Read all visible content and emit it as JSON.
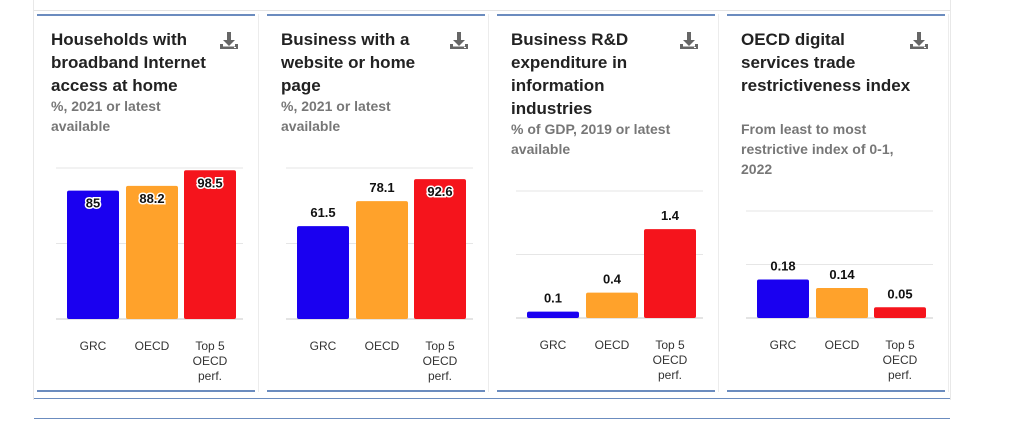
{
  "chart_data": [
    {
      "type": "bar",
      "title": "Households with broadband Internet access at home",
      "subtitle": "%, 2021 or latest available",
      "categories": [
        "GRC",
        "OECD",
        "Top 5 OECD perf."
      ],
      "values": [
        85,
        88.2,
        98.5
      ],
      "value_labels": [
        "85",
        "88.2",
        "98.5"
      ],
      "ylim": [
        0,
        100
      ],
      "grid": true,
      "label_style": "inside"
    },
    {
      "type": "bar",
      "title": "Business with a website or home page",
      "subtitle": "%, 2021 or latest available",
      "categories": [
        "GRC",
        "OECD",
        "Top 5 OECD perf."
      ],
      "values": [
        61.5,
        78.1,
        92.6
      ],
      "value_labels": [
        "61.5",
        "78.1",
        "92.6"
      ],
      "ylim": [
        0,
        100
      ],
      "grid": true,
      "label_style": "mixed"
    },
    {
      "type": "bar",
      "title": "Business R&D expenditure in information industries",
      "subtitle": "% of GDP, 2019 or latest available",
      "categories": [
        "GRC",
        "OECD",
        "Top 5 OECD perf."
      ],
      "values": [
        0.1,
        0.4,
        1.4
      ],
      "value_labels": [
        "0.1",
        "0.4",
        "1.4"
      ],
      "ylim": [
        0,
        2
      ],
      "grid": true,
      "label_style": "above"
    },
    {
      "type": "bar",
      "title": "OECD digital services trade restrictiveness index",
      "subtitle": "From least to most restrictive index of 0-1, 2022",
      "categories": [
        "GRC",
        "OECD",
        "Top 5 OECD perf."
      ],
      "values": [
        0.18,
        0.14,
        0.05
      ],
      "value_labels": [
        "0.18",
        "0.14",
        "0.05"
      ],
      "ylim": [
        0,
        0.5
      ],
      "grid": true,
      "label_style": "above"
    }
  ],
  "colors": {
    "grc": "#1a00f0",
    "oecd": "#ffa22b",
    "top5": "#f5141c",
    "grid": "#e6e6e6",
    "axis": "#c9c9c9",
    "title": "#222222",
    "subtitle": "#777777",
    "accent_line": "#6b8cbf"
  },
  "icons": {
    "download": "download-icon"
  }
}
